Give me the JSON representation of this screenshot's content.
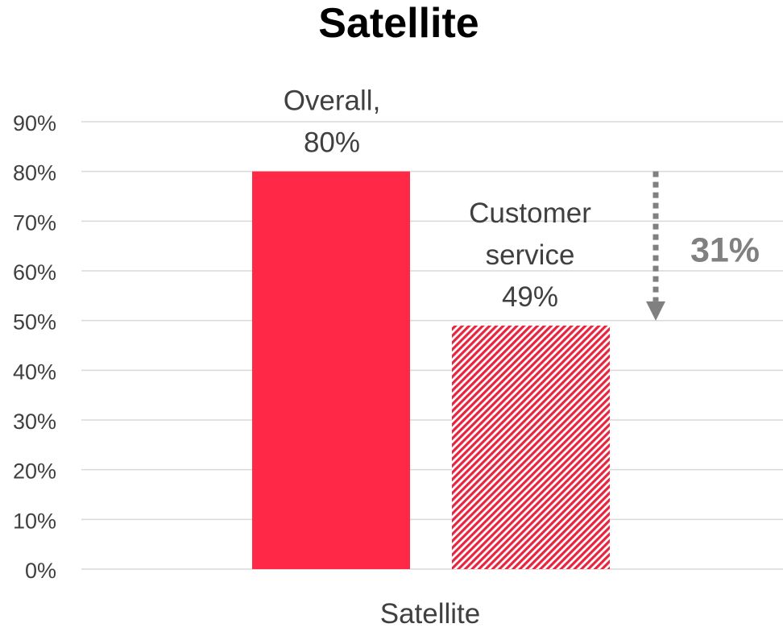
{
  "chart_data": {
    "type": "bar",
    "title": "Satellite",
    "categories": [
      "Satellite"
    ],
    "series": [
      {
        "name": "Overall",
        "values": [
          80
        ],
        "label_lines": [
          "Overall,",
          "80%"
        ],
        "color": "#FF2846",
        "pattern": "solid"
      },
      {
        "name": "Customer service",
        "values": [
          49
        ],
        "label_lines": [
          "Customer",
          "service",
          "49%"
        ],
        "color": "#E8243F",
        "pattern": "diagonal-hatch"
      }
    ],
    "ylim": [
      0,
      90
    ],
    "yticks": [
      0,
      10,
      20,
      30,
      40,
      50,
      60,
      70,
      80,
      90
    ],
    "ytick_labels": [
      "0%",
      "10%",
      "20%",
      "30%",
      "40%",
      "50%",
      "60%",
      "70%",
      "80%",
      "90%"
    ],
    "xlabel": "Satellite",
    "ylabel": "",
    "grid": true,
    "legend": "none",
    "annotation": {
      "text": "31%",
      "from_value": 80,
      "to_value": 49,
      "arrow": "dotted-down",
      "color": "#808080"
    },
    "colors": {
      "grid": "#D9D9D9",
      "tick_text": "#404040",
      "label_text": "#404040",
      "title_text": "#000000"
    }
  }
}
